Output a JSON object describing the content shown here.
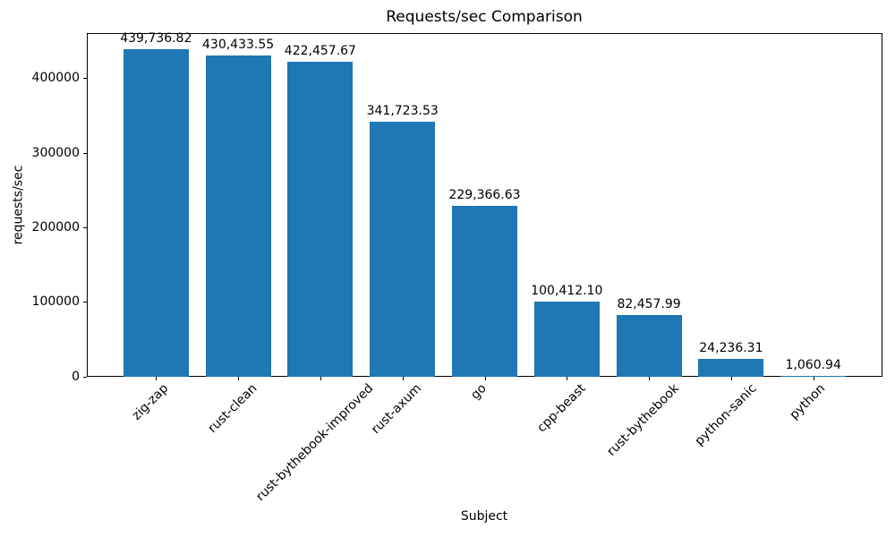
{
  "chart_data": {
    "type": "bar",
    "title": "Requests/sec Comparison",
    "xlabel": "Subject",
    "ylabel": "requests/sec",
    "categories": [
      "zig-zap",
      "rust-clean",
      "rust-bythebook-improved",
      "rust-axum",
      "go",
      "cpp-beast",
      "rust-bythebook",
      "python-sanic",
      "python"
    ],
    "values": [
      439736.82,
      430433.55,
      422457.67,
      341723.53,
      229366.63,
      100412.1,
      82457.99,
      24236.31,
      1060.94
    ],
    "value_labels": [
      "439,736.82",
      "430,433.55",
      "422,457.67",
      "341,723.53",
      "229,366.63",
      "100,412.10",
      "82,457.99",
      "24,236.31",
      "1,060.94"
    ],
    "yticks": [
      0,
      100000,
      200000,
      300000,
      400000
    ],
    "ytick_labels": [
      "0",
      "100000",
      "200000",
      "300000",
      "400000"
    ],
    "ylim": [
      0,
      461000
    ],
    "bar_color": "#1f77b4",
    "grid": false,
    "legend_position": "none"
  }
}
